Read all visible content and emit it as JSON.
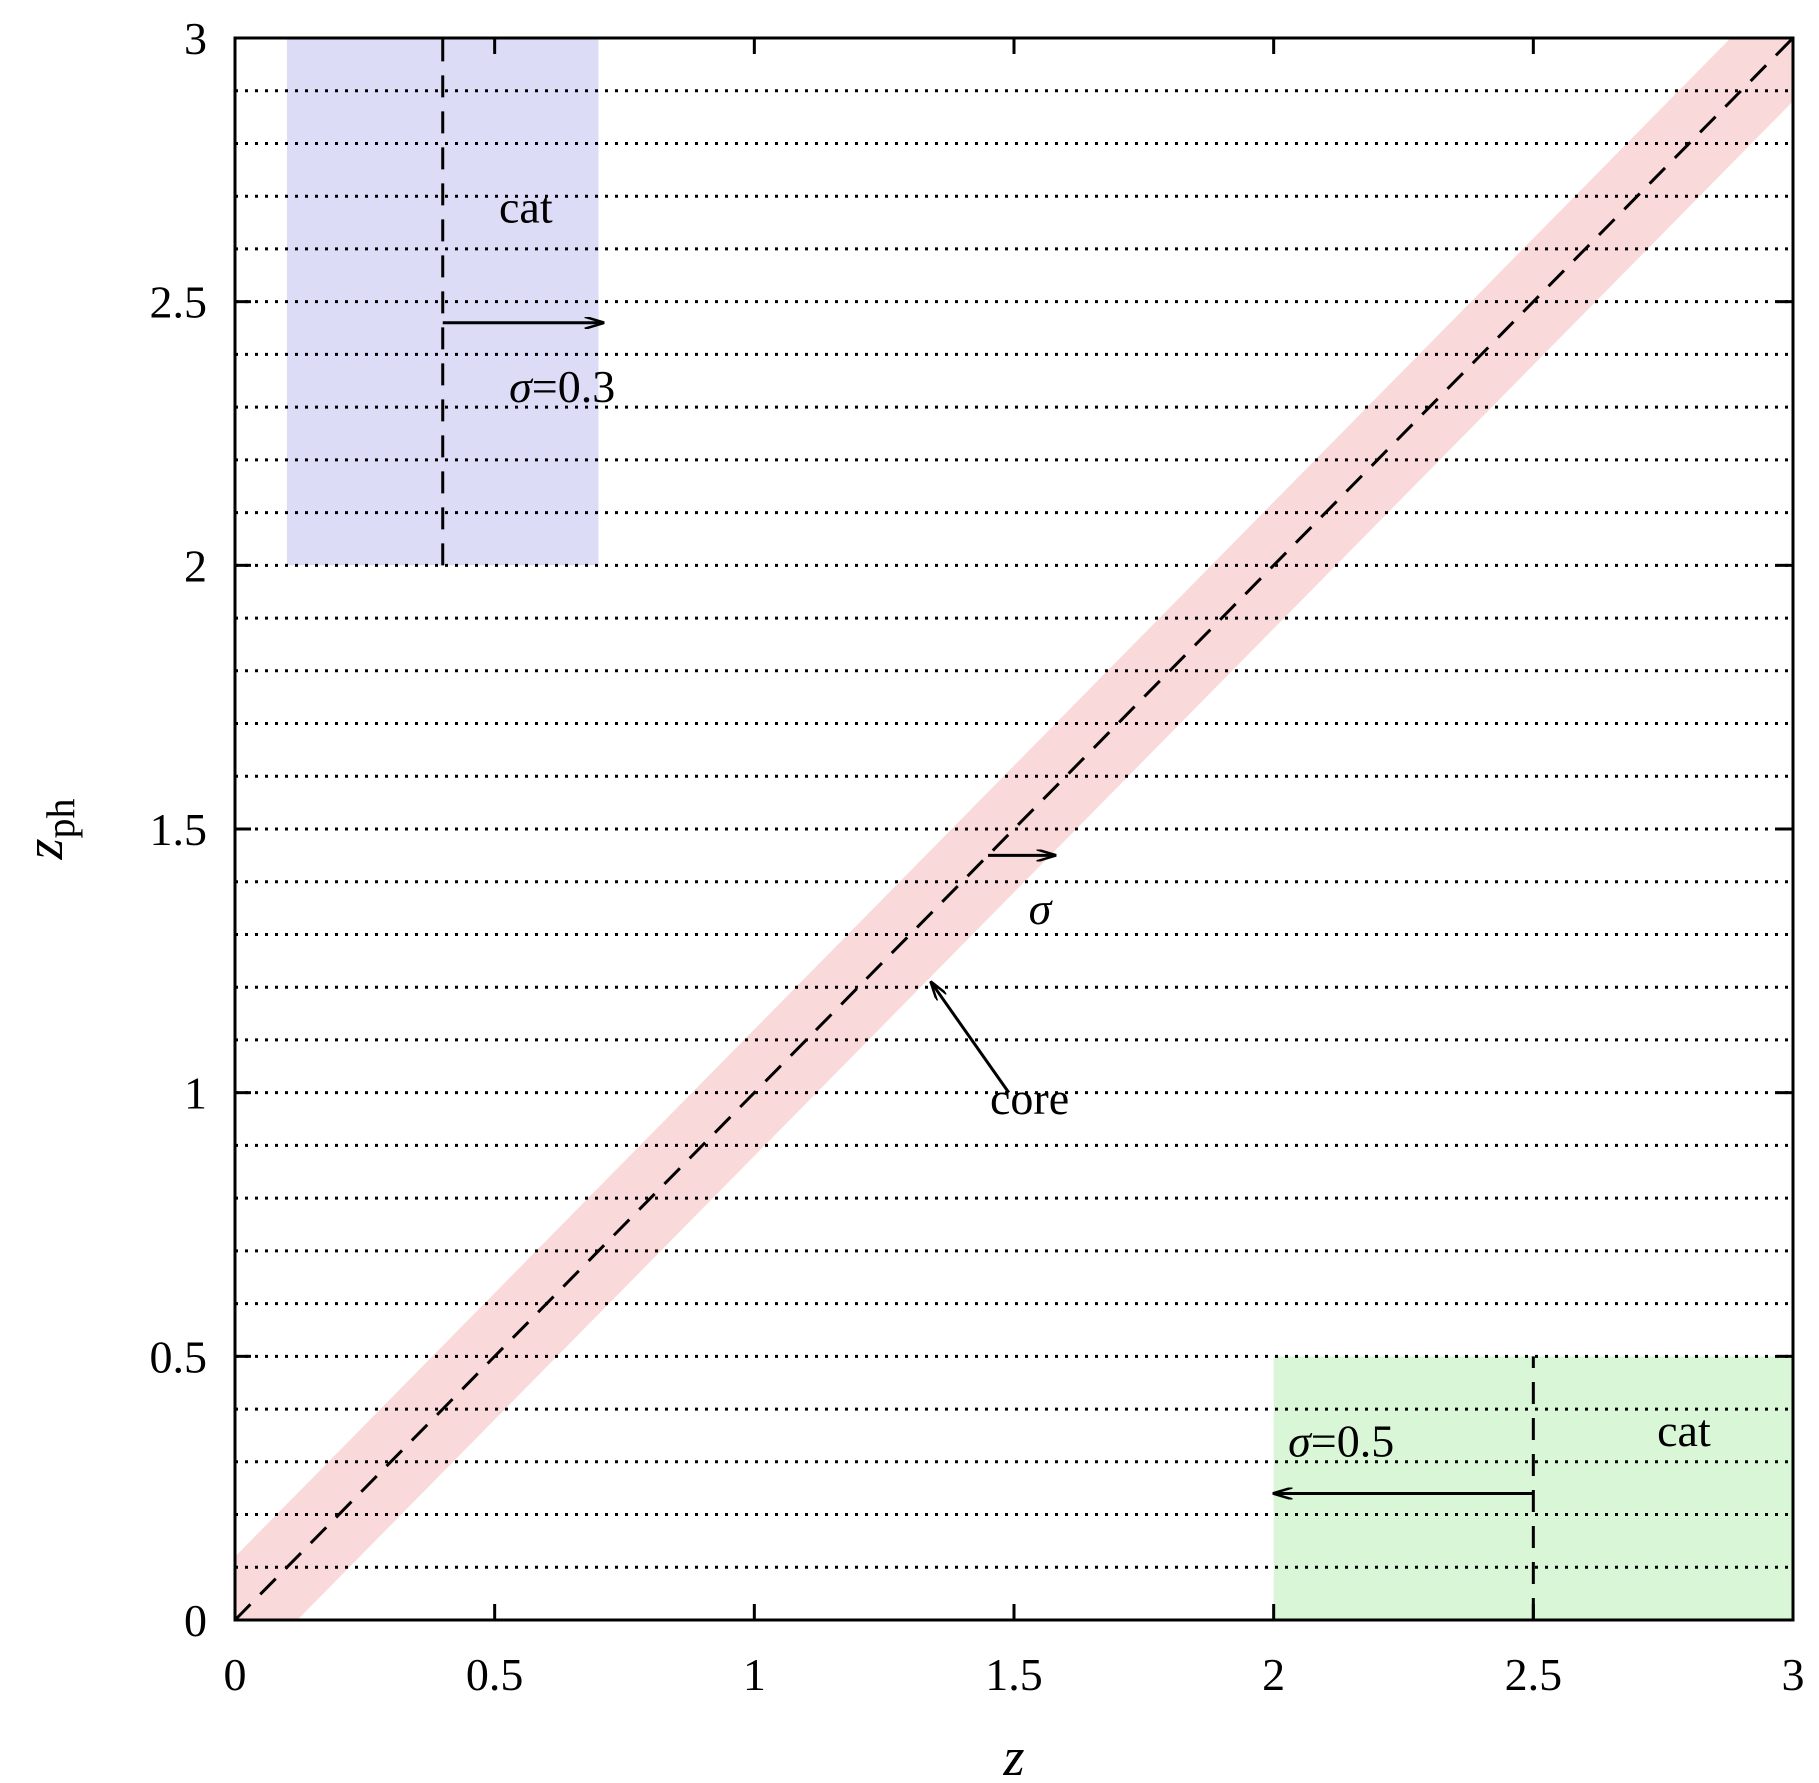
{
  "chart_data": {
    "type": "line",
    "xlabel": "z",
    "ylabel": {
      "main": "z",
      "sub": "ph"
    },
    "xlim": [
      0,
      3
    ],
    "ylim": [
      0,
      3
    ],
    "x_ticks": [
      "0",
      "0.5",
      "1",
      "1.5",
      "2",
      "2.5",
      "3"
    ],
    "y_ticks": [
      "0",
      "0.5",
      "1",
      "1.5",
      "2",
      "2.5",
      "3"
    ],
    "grid": {
      "horizontal_dotted_step": 0.1,
      "vertical": false
    },
    "series": [
      {
        "kind": "dashed-line",
        "x": [
          0,
          3
        ],
        "y": [
          0,
          3
        ]
      }
    ],
    "bands": [
      {
        "kind": "diagonal-band",
        "label": "core",
        "center_from": [
          0,
          0
        ],
        "center_to": [
          3,
          3
        ],
        "half_width_x": 0.12,
        "color": "#f9d9d9"
      }
    ],
    "regions": [
      {
        "label": "cat",
        "x": [
          0.1,
          0.7
        ],
        "y": [
          2.0,
          3.0
        ],
        "color": "#dcdcf7",
        "center_x": 0.4
      },
      {
        "label": "cat",
        "x": [
          2.0,
          3.0
        ],
        "y": [
          0.0,
          0.5
        ],
        "color": "#d9f7d6",
        "center_x": 2.5
      }
    ],
    "annotations": [
      {
        "id": "cat-top",
        "text": "cat",
        "x": 0.56,
        "y": 2.65
      },
      {
        "id": "sigma-top",
        "sigma": "σ",
        "text": "=0.3",
        "x": 0.63,
        "y": 2.31
      },
      {
        "id": "sigma-mid",
        "sigma": "σ",
        "text": "",
        "x": 1.55,
        "y": 1.32
      },
      {
        "id": "core",
        "text": "core",
        "x": 1.53,
        "y": 0.96
      },
      {
        "id": "sigma-bottom",
        "sigma": "σ",
        "text": "=0.5",
        "x": 2.13,
        "y": 0.31
      },
      {
        "id": "cat-bottom",
        "text": "cat",
        "x": 2.79,
        "y": 0.33
      }
    ],
    "arrows": [
      {
        "id": "arrow-sigma-03",
        "from": [
          0.4,
          2.46
        ],
        "to": [
          0.71,
          2.46
        ]
      },
      {
        "id": "arrow-sigma-mid",
        "from": [
          1.45,
          1.45
        ],
        "to": [
          1.58,
          1.45
        ]
      },
      {
        "id": "arrow-core",
        "from": [
          1.49,
          1.0
        ],
        "to": [
          1.34,
          1.21
        ]
      },
      {
        "id": "arrow-sigma-05",
        "from": [
          2.5,
          0.24
        ],
        "to": [
          2.0,
          0.24
        ]
      }
    ]
  }
}
